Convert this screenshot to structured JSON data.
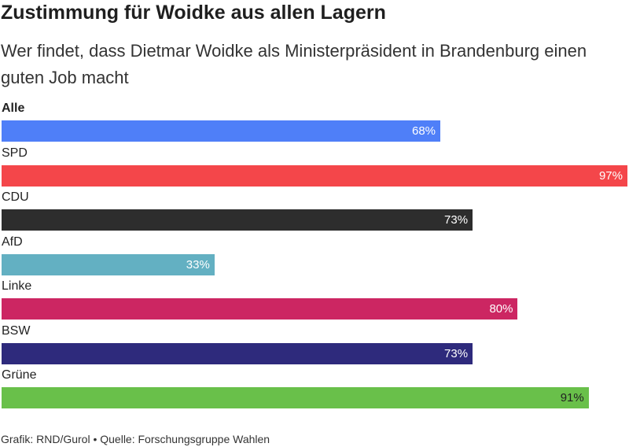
{
  "header": {
    "title": "Zustimmung für Woidke aus allen Lagern",
    "subtitle": "Wer findet, dass Dietmar Woidke als Ministerpräsident in Brandenburg einen guten Job macht"
  },
  "chart_data": {
    "type": "bar",
    "orientation": "horizontal",
    "title": "Zustimmung für Woidke aus allen Lagern",
    "subtitle": "Wer findet, dass Dietmar Woidke als Ministerpräsident in Brandenburg einen guten Job macht",
    "categories": [
      "Alle",
      "SPD",
      "CDU",
      "AfD",
      "Linke",
      "BSW",
      "Grüne"
    ],
    "values": [
      68,
      97,
      73,
      33,
      80,
      73,
      91
    ],
    "value_labels": [
      "68%",
      "97%",
      "73%",
      "33%",
      "80%",
      "73%",
      "91%"
    ],
    "colors": [
      "#4f7ff8",
      "#f4464a",
      "#2d2d2d",
      "#63b0c2",
      "#cc2662",
      "#2e2a7c",
      "#69c04a"
    ],
    "label_colors": [
      "#ffffff",
      "#ffffff",
      "#ffffff",
      "#ffffff",
      "#ffffff",
      "#ffffff",
      "#222222"
    ],
    "bold_categories": [
      "Alle"
    ],
    "xlim": [
      0,
      97
    ],
    "xlabel": "",
    "ylabel": "",
    "grid": false,
    "legend": "none"
  },
  "footer": {
    "credit": "Grafik: RND/Gurol • Quelle: Forschungsgruppe Wahlen"
  }
}
